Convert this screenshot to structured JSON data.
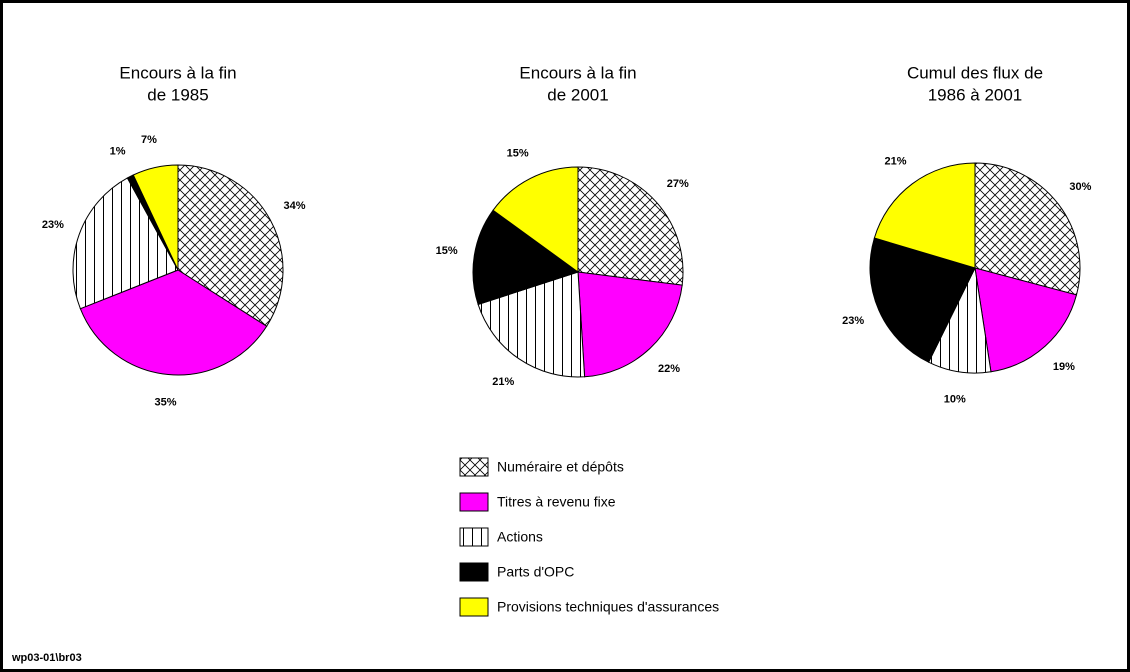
{
  "chart_data": [
    {
      "type": "pie",
      "title": [
        "Encours à la fin",
        "de 1985"
      ],
      "values": [
        34,
        35,
        23,
        1,
        7
      ],
      "value_labels": [
        "34%",
        "35%",
        "23%",
        "1%",
        "7%"
      ]
    },
    {
      "type": "pie",
      "title": [
        "Encours à la fin",
        "de 2001"
      ],
      "values": [
        27,
        22,
        21,
        15,
        15
      ],
      "value_labels": [
        "27%",
        "22%",
        "21%",
        "15%",
        "15%"
      ]
    },
    {
      "type": "pie",
      "title": [
        "Cumul des flux de",
        "1986 à 2001"
      ],
      "values": [
        30,
        19,
        10,
        23,
        21
      ],
      "value_labels": [
        "30%",
        "19%",
        "10%",
        "23%",
        "21%"
      ]
    }
  ],
  "legend": [
    {
      "name": "Numéraire et dépôts",
      "color": "#ffffff",
      "pattern": "crosshatch"
    },
    {
      "name": "Titres à revenu fixe",
      "color": "#ff00ff"
    },
    {
      "name": "Actions",
      "color": "#ffffff",
      "pattern": "vertical"
    },
    {
      "name": "Parts d'OPC",
      "color": "#000000"
    },
    {
      "name": "Provisions techniques d'assurances",
      "color": "#ffff00"
    }
  ],
  "footer": "wp03-01\\br03"
}
